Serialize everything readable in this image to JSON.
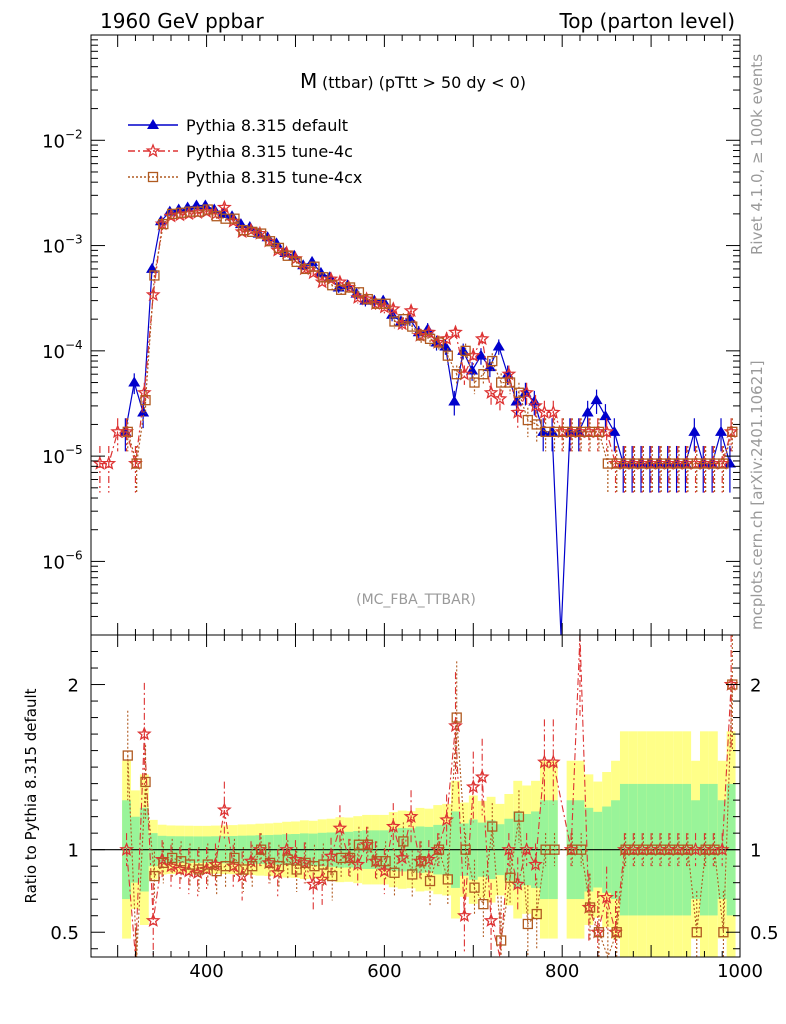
{
  "header": {
    "left": "1960 GeV ppbar",
    "right": "Top (parton level)"
  },
  "side": {
    "rivet": "Rivet 4.1.0, ≥ 100k events",
    "mcplots": "mcplots.cern.ch [arXiv:2401.10621]"
  },
  "chart_data": {
    "type": "line",
    "title": "M (ttbar) (pTtt > 50 dy < 0)",
    "title_main": "M",
    "title_sub": "(ttbar) (pTtt > 50 dy < 0)",
    "watermark": "(MC_FBA_TTBAR)",
    "xlabel": "",
    "ylabel": "",
    "ratio_ylabel": "Ratio to Pythia 8.315 default",
    "xlim": [
      270,
      1000
    ],
    "ylim": [
      2e-07,
      0.1
    ],
    "yscale": "log",
    "ratio_ylim": [
      0.35,
      2.3
    ],
    "x_ticks": [
      400,
      600,
      800,
      1000
    ],
    "y_ticks": [
      {
        "value": 1e-06,
        "label": "10",
        "exp": "−6"
      },
      {
        "value": 1e-05,
        "label": "10",
        "exp": "−5"
      },
      {
        "value": 0.0001,
        "label": "10",
        "exp": "−4"
      },
      {
        "value": 0.001,
        "label": "10",
        "exp": "−3"
      },
      {
        "value": 0.01,
        "label": "10",
        "exp": "−2"
      }
    ],
    "ratio_ticks": [
      {
        "value": 0.5,
        "label": "0.5"
      },
      {
        "value": 1,
        "label": "1"
      },
      {
        "value": 2,
        "label": "2"
      }
    ],
    "legend_position": "top-left",
    "x": [
      280,
      290,
      300,
      310,
      320,
      330,
      340,
      350,
      360,
      370,
      380,
      390,
      400,
      410,
      420,
      430,
      440,
      450,
      460,
      470,
      480,
      490,
      500,
      510,
      520,
      530,
      540,
      550,
      560,
      570,
      580,
      590,
      600,
      610,
      620,
      630,
      640,
      650,
      660,
      670,
      680,
      690,
      700,
      710,
      720,
      730,
      740,
      750,
      760,
      770,
      780,
      790,
      800,
      810,
      820,
      830,
      840,
      850,
      860,
      870,
      880,
      890,
      900,
      910,
      920,
      930,
      940,
      950,
      960,
      970,
      980,
      990
    ],
    "series": [
      {
        "name": "Pythia 8.315 default",
        "color": "#0000cc",
        "values": [
          0,
          0,
          0,
          1.7e-05,
          5e-05,
          2.6e-05,
          0.0006,
          0.0017,
          0.0021,
          0.0022,
          0.0023,
          0.0024,
          0.0024,
          0.0022,
          0.002,
          0.0019,
          0.0016,
          0.0015,
          0.0013,
          0.0012,
          0.00105,
          0.00085,
          0.0008,
          0.00065,
          0.0007,
          0.00055,
          0.0005,
          0.0004,
          0.00042,
          0.00035,
          0.0003,
          0.0003,
          0.0003,
          0.00022,
          0.00019,
          0.0002,
          0.00015,
          0.00016,
          0.00012,
          0.00011,
          3.3e-05,
          0.0001,
          6.5e-05,
          9e-05,
          7e-05,
          0.00011,
          6e-05,
          3.3e-05,
          4e-05,
          3.3e-05,
          1.7e-05,
          1.7e-05,
          1e-08,
          1.7e-05,
          1.7e-05,
          2.6e-05,
          3.4e-05,
          2.4e-05,
          1.7e-05,
          8.5e-06,
          8.5e-06,
          8.5e-06,
          8.5e-06,
          8.5e-06,
          8.5e-06,
          8.5e-06,
          8.5e-06,
          1.7e-05,
          8.5e-06,
          8.5e-06,
          1.7e-05,
          8.5e-06
        ]
      },
      {
        "name": "Pythia 8.315 tune-4c",
        "color": "#dd3333",
        "values": [
          8.5e-06,
          8.5e-06,
          1.7e-05,
          1.7e-05,
          8.5e-06,
          4e-05,
          0.00034,
          0.0016,
          0.0019,
          0.00195,
          0.002,
          0.00205,
          0.0021,
          0.002,
          0.0023,
          0.0017,
          0.00135,
          0.0014,
          0.0013,
          0.0011,
          0.0009,
          0.00085,
          0.00075,
          0.0006,
          0.00055,
          0.00045,
          0.00048,
          0.00045,
          0.0004,
          0.00032,
          0.00031,
          0.00028,
          0.00026,
          0.00025,
          0.00018,
          0.00024,
          0.00014,
          0.00015,
          0.00012,
          0.00013,
          0.00015,
          6e-05,
          9e-05,
          0.00013,
          4e-05,
          3.5e-05,
          6e-05,
          2.6e-05,
          4e-05,
          3e-05,
          2.6e-05,
          2.6e-05,
          1.7e-05,
          1.7e-05,
          1.7e-05,
          1.7e-05,
          1.7e-05,
          1.7e-05,
          8.5e-06,
          8.5e-06,
          8.5e-06,
          8.5e-06,
          8.5e-06,
          8.5e-06,
          8.5e-06,
          8.5e-06,
          8.5e-06,
          8.5e-06,
          8.5e-06,
          8.5e-06,
          8.5e-06,
          1.7e-05
        ]
      },
      {
        "name": "Pythia 8.315 tune-4cx",
        "color": "#b05a20",
        "values": [
          0,
          0,
          0,
          1.7e-05,
          8.5e-06,
          3.4e-05,
          0.00052,
          0.0016,
          0.002,
          0.00205,
          0.0021,
          0.0021,
          0.0022,
          0.0019,
          0.0018,
          0.0018,
          0.0014,
          0.00135,
          0.0013,
          0.0011,
          0.00095,
          0.0008,
          0.0007,
          0.0006,
          0.00063,
          0.0005,
          0.00042,
          0.00038,
          0.0004,
          0.00036,
          0.00031,
          0.00028,
          0.00028,
          0.00019,
          0.0002,
          0.00017,
          0.00014,
          0.00013,
          0.00012,
          9e-05,
          6e-05,
          0.0001,
          5e-05,
          6e-05,
          8e-05,
          5e-05,
          5e-05,
          4e-05,
          2.2e-05,
          2e-05,
          1.7e-05,
          1.7e-05,
          1.7e-05,
          1.7e-05,
          1.7e-05,
          1.7e-05,
          1.7e-05,
          8.5e-06,
          8.5e-06,
          8.5e-06,
          8.5e-06,
          8.5e-06,
          8.5e-06,
          8.5e-06,
          8.5e-06,
          8.5e-06,
          8.5e-06,
          8.5e-06,
          8.5e-06,
          8.5e-06,
          8.5e-06,
          1.7e-05
        ]
      }
    ],
    "ratio_series": [
      {
        "name": "Pythia 8.315 tune-4c",
        "values": [
          null,
          null,
          null,
          1.0,
          0.17,
          1.7,
          0.57,
          0.94,
          0.9,
          0.88,
          0.87,
          0.86,
          0.88,
          0.91,
          1.24,
          0.9,
          0.84,
          0.93,
          1.0,
          0.92,
          0.86,
          1.0,
          0.94,
          0.92,
          0.79,
          0.82,
          0.96,
          1.13,
          0.95,
          0.91,
          1.03,
          0.93,
          0.87,
          1.14,
          0.95,
          1.2,
          0.93,
          0.94,
          1.0,
          1.18,
          1.75,
          0.6,
          1.38,
          1.44,
          0.57,
          0.32,
          1.0,
          0.79,
          1.0,
          0.91,
          1.53,
          1.53,
          null,
          1.0,
          2.3,
          0.65,
          0.5,
          0.71,
          0.5,
          1.0,
          1.0,
          1.0,
          1.0,
          1.0,
          1.0,
          1.0,
          1.0,
          1.0,
          1.0,
          1.0,
          1.0,
          2.0
        ]
      },
      {
        "name": "Pythia 8.315 tune-4cx",
        "values": [
          null,
          null,
          null,
          1.57,
          0.17,
          1.41,
          0.84,
          0.92,
          0.95,
          0.93,
          0.91,
          0.88,
          0.91,
          0.87,
          0.9,
          0.95,
          0.88,
          0.9,
          1.0,
          0.92,
          0.9,
          0.94,
          0.88,
          0.92,
          0.9,
          0.91,
          0.84,
          0.95,
          0.95,
          1.03,
          1.03,
          0.93,
          0.93,
          0.86,
          1.05,
          0.85,
          0.93,
          0.81,
          1.0,
          0.82,
          1.8,
          1.0,
          0.77,
          0.67,
          1.14,
          0.45,
          0.83,
          1.2,
          0.55,
          0.61,
          1.0,
          1.0,
          null,
          1.0,
          1.0,
          0.65,
          0.5,
          0.35,
          0.5,
          1.0,
          1.0,
          1.0,
          1.0,
          1.0,
          1.0,
          1.0,
          1.0,
          0.5,
          1.0,
          1.0,
          0.5,
          2.0
        ]
      }
    ]
  }
}
